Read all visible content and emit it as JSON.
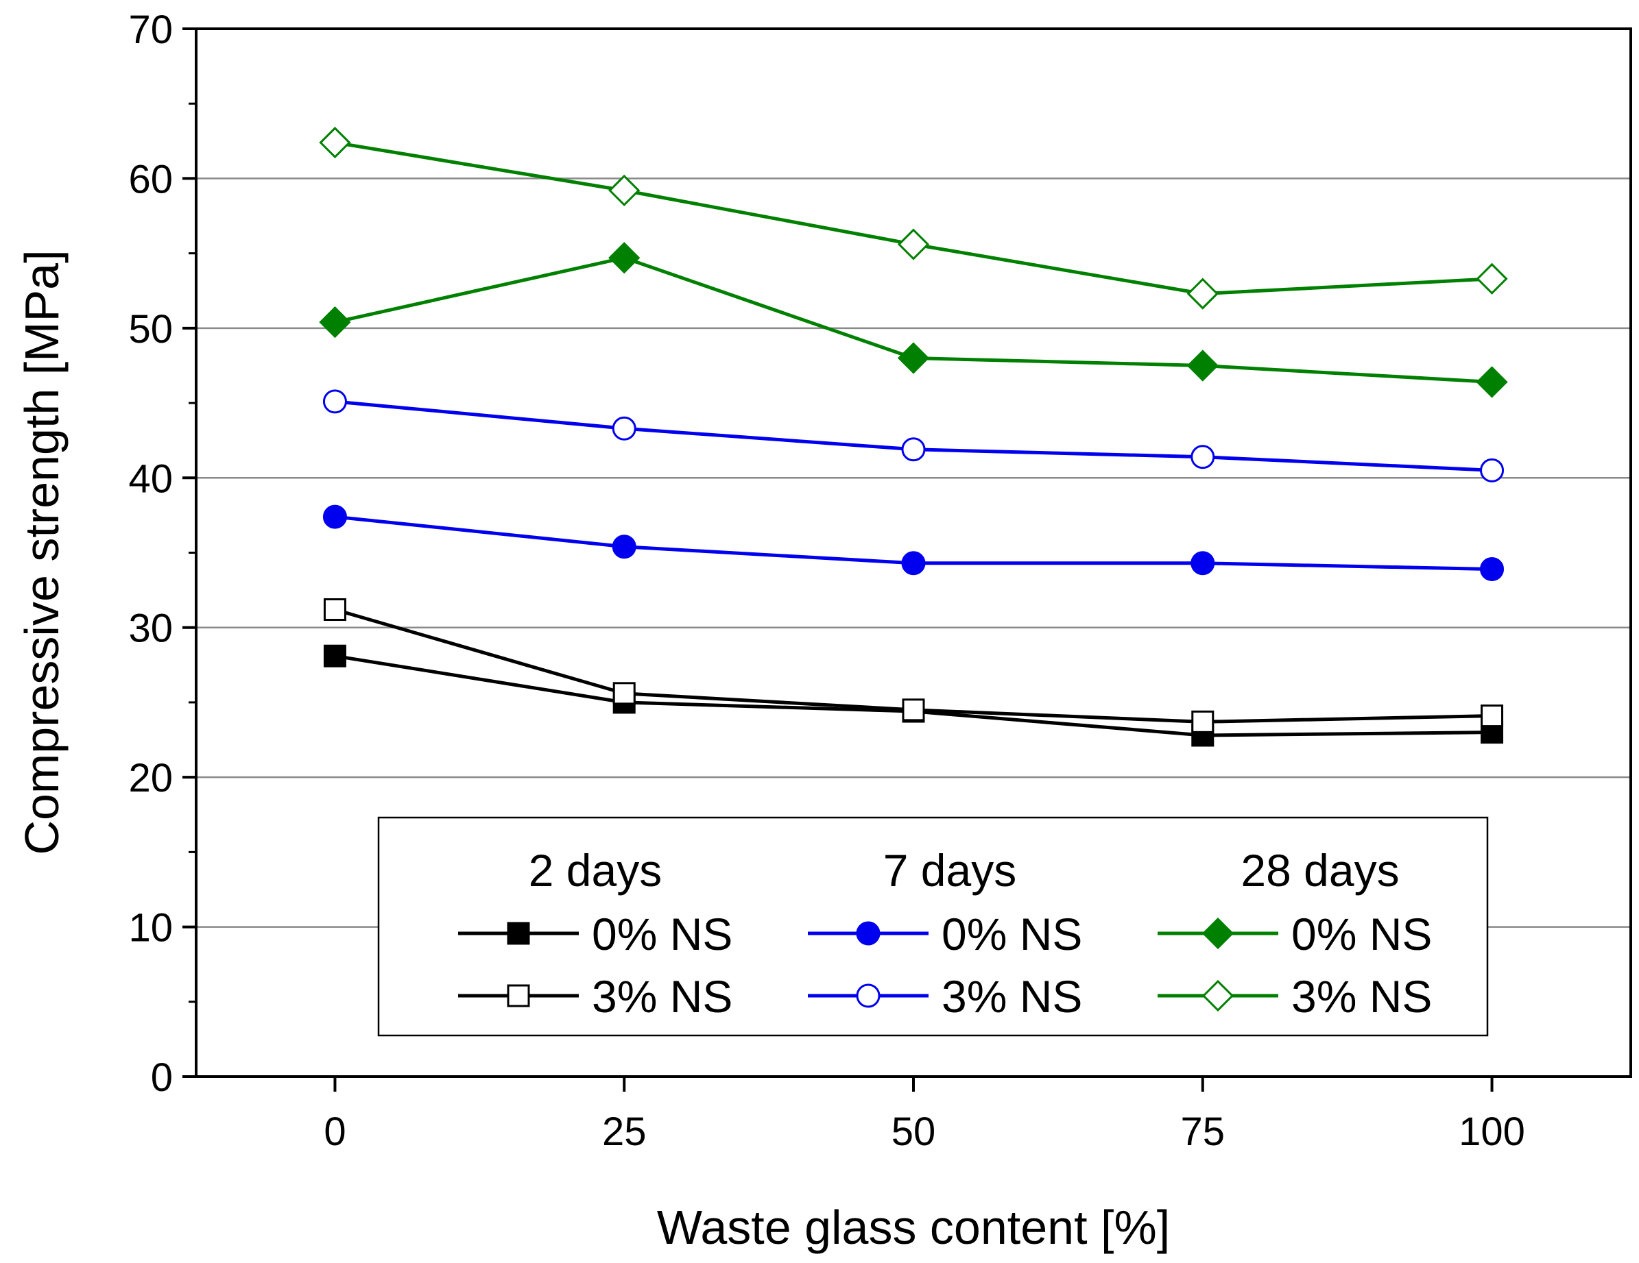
{
  "chart_data": {
    "type": "line",
    "title": "",
    "xlabel": "Waste glass content [%]",
    "ylabel": "Compressive strength [MPa]",
    "xlim": [
      -12,
      112
    ],
    "ylim": [
      0,
      70
    ],
    "x_ticks": [
      0,
      25,
      50,
      75,
      100
    ],
    "y_ticks": [
      0,
      10,
      20,
      30,
      40,
      50,
      60,
      70
    ],
    "x_tick_labels": [
      "0",
      "25",
      "50",
      "75",
      "100"
    ],
    "y_tick_labels": [
      "0",
      "10",
      "20",
      "30",
      "40",
      "50",
      "60",
      "70"
    ],
    "grid": "horizontal",
    "x": [
      0,
      25,
      50,
      75,
      100
    ],
    "series": [
      {
        "name": "2 days 0% NS",
        "age": "2 days",
        "ns": "0% NS",
        "color": "#000000",
        "marker": "square",
        "filled": true,
        "values": [
          28.1,
          25.0,
          24.4,
          22.8,
          23.0
        ]
      },
      {
        "name": "2 days 3% NS",
        "age": "2 days",
        "ns": "3% NS",
        "color": "#000000",
        "marker": "square",
        "filled": false,
        "values": [
          31.2,
          25.6,
          24.5,
          23.7,
          24.1
        ]
      },
      {
        "name": "7 days 0% NS",
        "age": "7 days",
        "ns": "0% NS",
        "color": "#0000ee",
        "marker": "circle",
        "filled": true,
        "values": [
          37.4,
          35.4,
          34.3,
          34.3,
          33.9
        ]
      },
      {
        "name": "7 days 3% NS",
        "age": "7 days",
        "ns": "3% NS",
        "color": "#0000ee",
        "marker": "circle",
        "filled": false,
        "values": [
          45.1,
          43.3,
          41.9,
          41.4,
          40.5
        ]
      },
      {
        "name": "28 days 0% NS",
        "age": "28 days",
        "ns": "0% NS",
        "color": "#008000",
        "marker": "diamond",
        "filled": true,
        "values": [
          50.4,
          54.7,
          48.0,
          47.5,
          46.4
        ]
      },
      {
        "name": "28 days 3% NS",
        "age": "28 days",
        "ns": "3% NS",
        "color": "#008000",
        "marker": "diamond",
        "filled": false,
        "values": [
          62.4,
          59.2,
          55.6,
          52.3,
          53.3
        ]
      }
    ],
    "legend": {
      "placement": "bottom-center",
      "groups": [
        {
          "title": "2 days",
          "entries": [
            "0% NS",
            "3% NS"
          ]
        },
        {
          "title": "7 days",
          "entries": [
            "0% NS",
            "3% NS"
          ]
        },
        {
          "title": "28 days",
          "entries": [
            "0% NS",
            "3% NS"
          ]
        }
      ]
    }
  }
}
